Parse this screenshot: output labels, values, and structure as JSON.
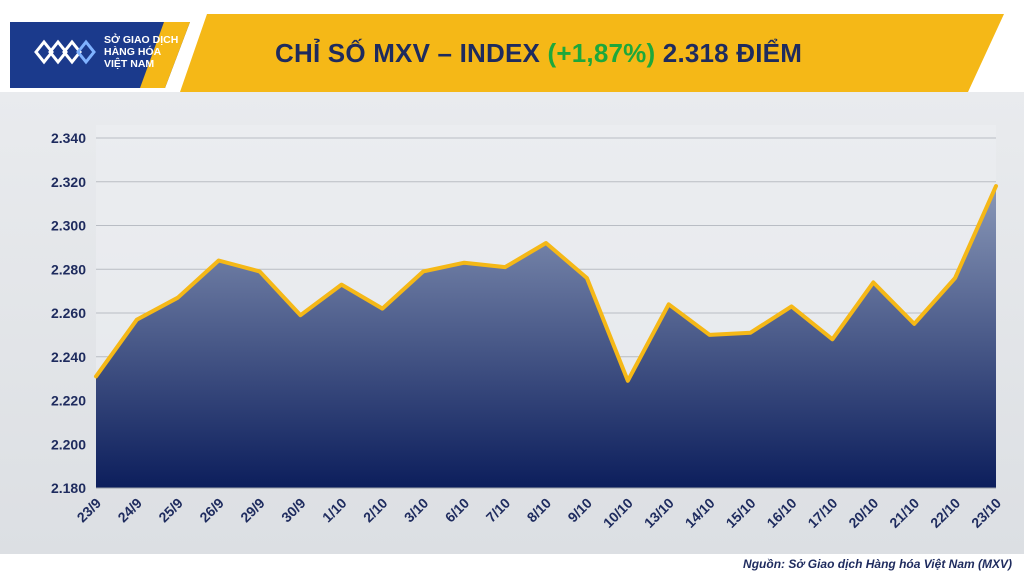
{
  "header": {
    "logo_line1": "SỞ GIAO DỊCH",
    "logo_line2": "HÀNG HÓA",
    "logo_line3": "VIỆT NAM",
    "title_prefix": "CHỈ SỐ MXV – INDEX ",
    "title_change": "(+1,87%)",
    "title_suffix": " 2.318 ĐIỂM"
  },
  "source": "Nguồn: Sở Giao dịch Hàng hóa Việt Nam (MXV)",
  "colors": {
    "line": "#f5b817",
    "fill_top": "#8a98b8",
    "fill_bottom": "#0c1e5c",
    "banner": "#f5b817",
    "title": "#1e2b5e",
    "change": "#1da83b"
  },
  "chart_data": {
    "type": "area",
    "title": "CHỈ SỐ MXV – INDEX (+1,87%) 2.318 ĐIỂM",
    "categories": [
      "23/9",
      "24/9",
      "25/9",
      "26/9",
      "29/9",
      "30/9",
      "1/10",
      "2/10",
      "3/10",
      "6/10",
      "7/10",
      "8/10",
      "9/10",
      "10/10",
      "13/10",
      "14/10",
      "15/10",
      "16/10",
      "17/10",
      "20/10",
      "21/10",
      "22/10",
      "23/10"
    ],
    "values": [
      2231,
      2257,
      2267,
      2284,
      2279,
      2259,
      2273,
      2262,
      2279,
      2283,
      2281,
      2292,
      2276,
      2229,
      2264,
      2250,
      2251,
      2263,
      2248,
      2274,
      2255,
      2276,
      2318
    ],
    "yticks": [
      "2.180",
      "2.200",
      "2.220",
      "2.240",
      "2.260",
      "2.280",
      "2.300",
      "2.320",
      "2.340"
    ],
    "ylim": [
      2180,
      2340
    ],
    "grid": true,
    "legend": "none"
  }
}
